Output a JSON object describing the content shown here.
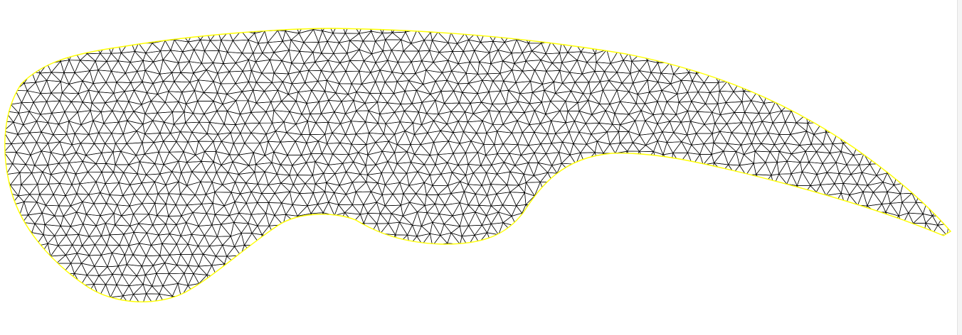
{
  "figure": {
    "type": "triangular-mesh",
    "shape": "curved tapered domain",
    "background_color": "#ffffff",
    "mesh_edge_color": "#000000",
    "boundary_color": "#ffff00"
  }
}
